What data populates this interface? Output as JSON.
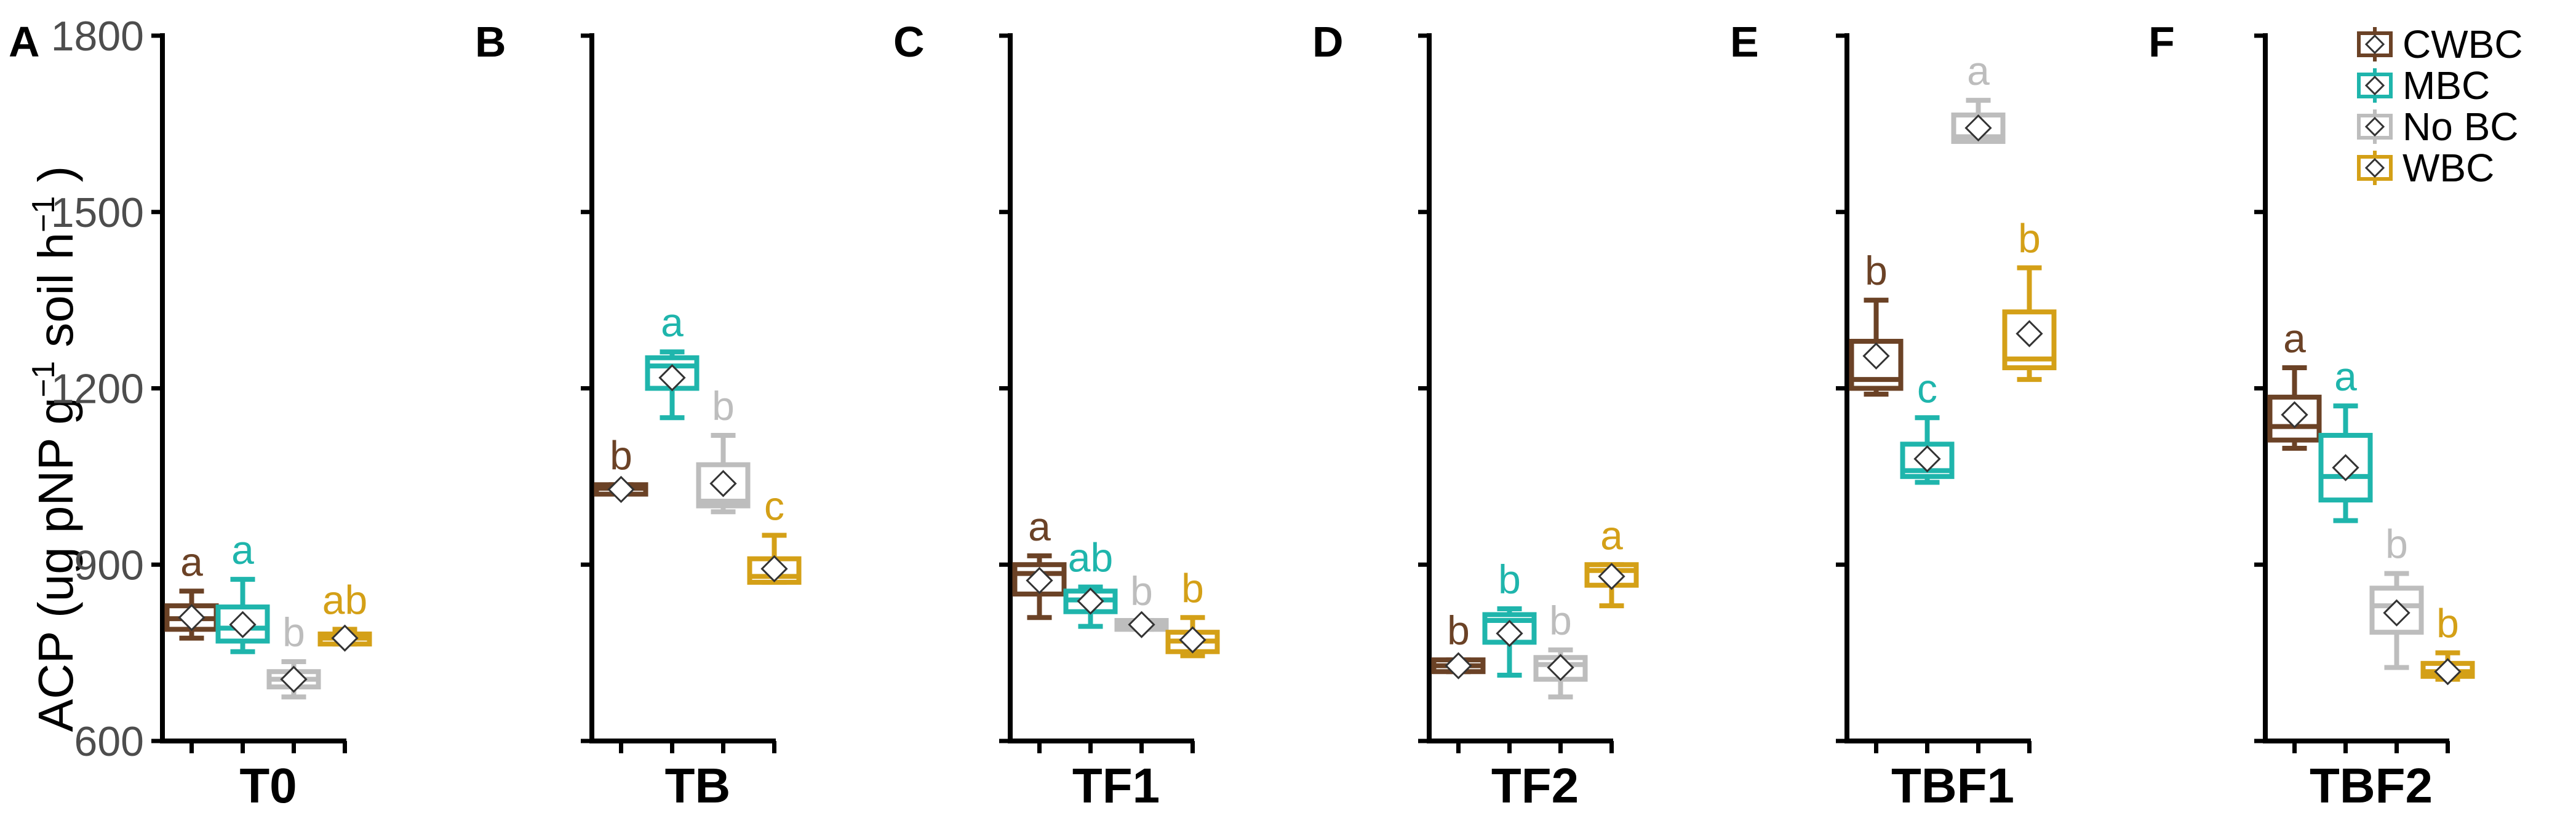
{
  "chart_data": {
    "type": "boxplot",
    "ylabel": {
      "parts": [
        "ACP (ug pNP g",
        "−1",
        " soil h",
        "−1",
        " )"
      ]
    },
    "ylim": [
      600,
      1800
    ],
    "yticks": [
      600,
      900,
      1200,
      1500,
      1800
    ],
    "colors": {
      "CWBC": "#6B4226",
      "MBC": "#1FB5AC",
      "No BC": "#BDBDBD",
      "WBC": "#D4A017"
    },
    "legend": [
      "CWBC",
      "MBC",
      "No BC",
      "WBC"
    ],
    "panels": [
      {
        "label": "A",
        "xlabel": "T0",
        "boxes": [
          {
            "group": "CWBC",
            "whisker_low": 775,
            "q1": 790,
            "median": 808,
            "q3": 830,
            "whisker_high": 855,
            "mean": 810,
            "sig": "a"
          },
          {
            "group": "MBC",
            "whisker_low": 752,
            "q1": 770,
            "median": 792,
            "q3": 828,
            "whisker_high": 875,
            "mean": 798,
            "sig": "a"
          },
          {
            "group": "No BC",
            "whisker_low": 675,
            "q1": 692,
            "median": 705,
            "q3": 718,
            "whisker_high": 735,
            "mean": 705,
            "sig": "b"
          },
          {
            "group": "WBC",
            "whisker_low": 765,
            "q1": 765,
            "median": 775,
            "q3": 782,
            "whisker_high": 790,
            "mean": 775,
            "sig": "ab"
          }
        ]
      },
      {
        "label": "B",
        "xlabel": "TB",
        "boxes": [
          {
            "group": "CWBC",
            "whisker_low": 1020,
            "q1": 1020,
            "median": 1030,
            "q3": 1036,
            "whisker_high": 1036,
            "mean": 1028,
            "sig": "b"
          },
          {
            "group": "MBC",
            "whisker_low": 1150,
            "q1": 1200,
            "median": 1238,
            "q3": 1252,
            "whisker_high": 1262,
            "mean": 1218,
            "sig": "a"
          },
          {
            "group": "No BC",
            "whisker_low": 990,
            "q1": 1000,
            "median": 1008,
            "q3": 1070,
            "whisker_high": 1120,
            "mean": 1038,
            "sig": "b"
          },
          {
            "group": "WBC",
            "whisker_low": 870,
            "q1": 870,
            "median": 880,
            "q3": 910,
            "whisker_high": 950,
            "mean": 893,
            "sig": "c"
          }
        ]
      },
      {
        "label": "C",
        "xlabel": "TF1",
        "boxes": [
          {
            "group": "CWBC",
            "whisker_low": 810,
            "q1": 850,
            "median": 885,
            "q3": 900,
            "whisker_high": 915,
            "mean": 873,
            "sig": "a"
          },
          {
            "group": "MBC",
            "whisker_low": 795,
            "q1": 820,
            "median": 840,
            "q3": 855,
            "whisker_high": 862,
            "mean": 838,
            "sig": "ab"
          },
          {
            "group": "No BC",
            "whisker_low": 790,
            "q1": 790,
            "median": 798,
            "q3": 805,
            "whisker_high": 805,
            "mean": 798,
            "sig": "b"
          },
          {
            "group": "WBC",
            "whisker_low": 745,
            "q1": 752,
            "median": 770,
            "q3": 785,
            "whisker_high": 810,
            "mean": 772,
            "sig": "b"
          }
        ]
      },
      {
        "label": "D",
        "xlabel": "TF2",
        "boxes": [
          {
            "group": "CWBC",
            "whisker_low": 718,
            "q1": 718,
            "median": 728,
            "q3": 738,
            "whisker_high": 738,
            "mean": 728,
            "sig": "b"
          },
          {
            "group": "MBC",
            "whisker_low": 712,
            "q1": 768,
            "median": 805,
            "q3": 815,
            "whisker_high": 825,
            "mean": 783,
            "sig": "b"
          },
          {
            "group": "No BC",
            "whisker_low": 675,
            "q1": 705,
            "median": 730,
            "q3": 742,
            "whisker_high": 755,
            "mean": 725,
            "sig": "b"
          },
          {
            "group": "WBC",
            "whisker_low": 830,
            "q1": 865,
            "median": 890,
            "q3": 900,
            "whisker_high": 900,
            "mean": 880,
            "sig": "a"
          }
        ]
      },
      {
        "label": "E",
        "xlabel": "TBF1",
        "boxes": [
          {
            "group": "CWBC",
            "whisker_low": 1190,
            "q1": 1200,
            "median": 1215,
            "q3": 1280,
            "whisker_high": 1350,
            "mean": 1255,
            "sig": "b"
          },
          {
            "group": "MBC",
            "whisker_low": 1040,
            "q1": 1050,
            "median": 1060,
            "q3": 1105,
            "whisker_high": 1150,
            "mean": 1080,
            "sig": "c"
          },
          {
            "group": "No BC",
            "whisker_low": 1620,
            "q1": 1620,
            "median": 1628,
            "q3": 1665,
            "whisker_high": 1690,
            "mean": 1643,
            "sig": "a"
          },
          {
            "group": "WBC",
            "whisker_low": 1215,
            "q1": 1235,
            "median": 1250,
            "q3": 1330,
            "whisker_high": 1405,
            "mean": 1293,
            "sig": "b"
          }
        ]
      },
      {
        "label": "F",
        "xlabel": "TBF2",
        "boxes": [
          {
            "group": "CWBC",
            "whisker_low": 1098,
            "q1": 1112,
            "median": 1135,
            "q3": 1185,
            "whisker_high": 1235,
            "mean": 1155,
            "sig": "a"
          },
          {
            "group": "MBC",
            "whisker_low": 975,
            "q1": 1010,
            "median": 1050,
            "q3": 1120,
            "whisker_high": 1170,
            "mean": 1065,
            "sig": "a"
          },
          {
            "group": "No BC",
            "whisker_low": 725,
            "q1": 785,
            "median": 830,
            "q3": 860,
            "whisker_high": 885,
            "mean": 818,
            "sig": "b"
          },
          {
            "group": "WBC",
            "whisker_low": 705,
            "q1": 710,
            "median": 718,
            "q3": 732,
            "whisker_high": 750,
            "mean": 718,
            "sig": "b"
          }
        ]
      }
    ]
  }
}
